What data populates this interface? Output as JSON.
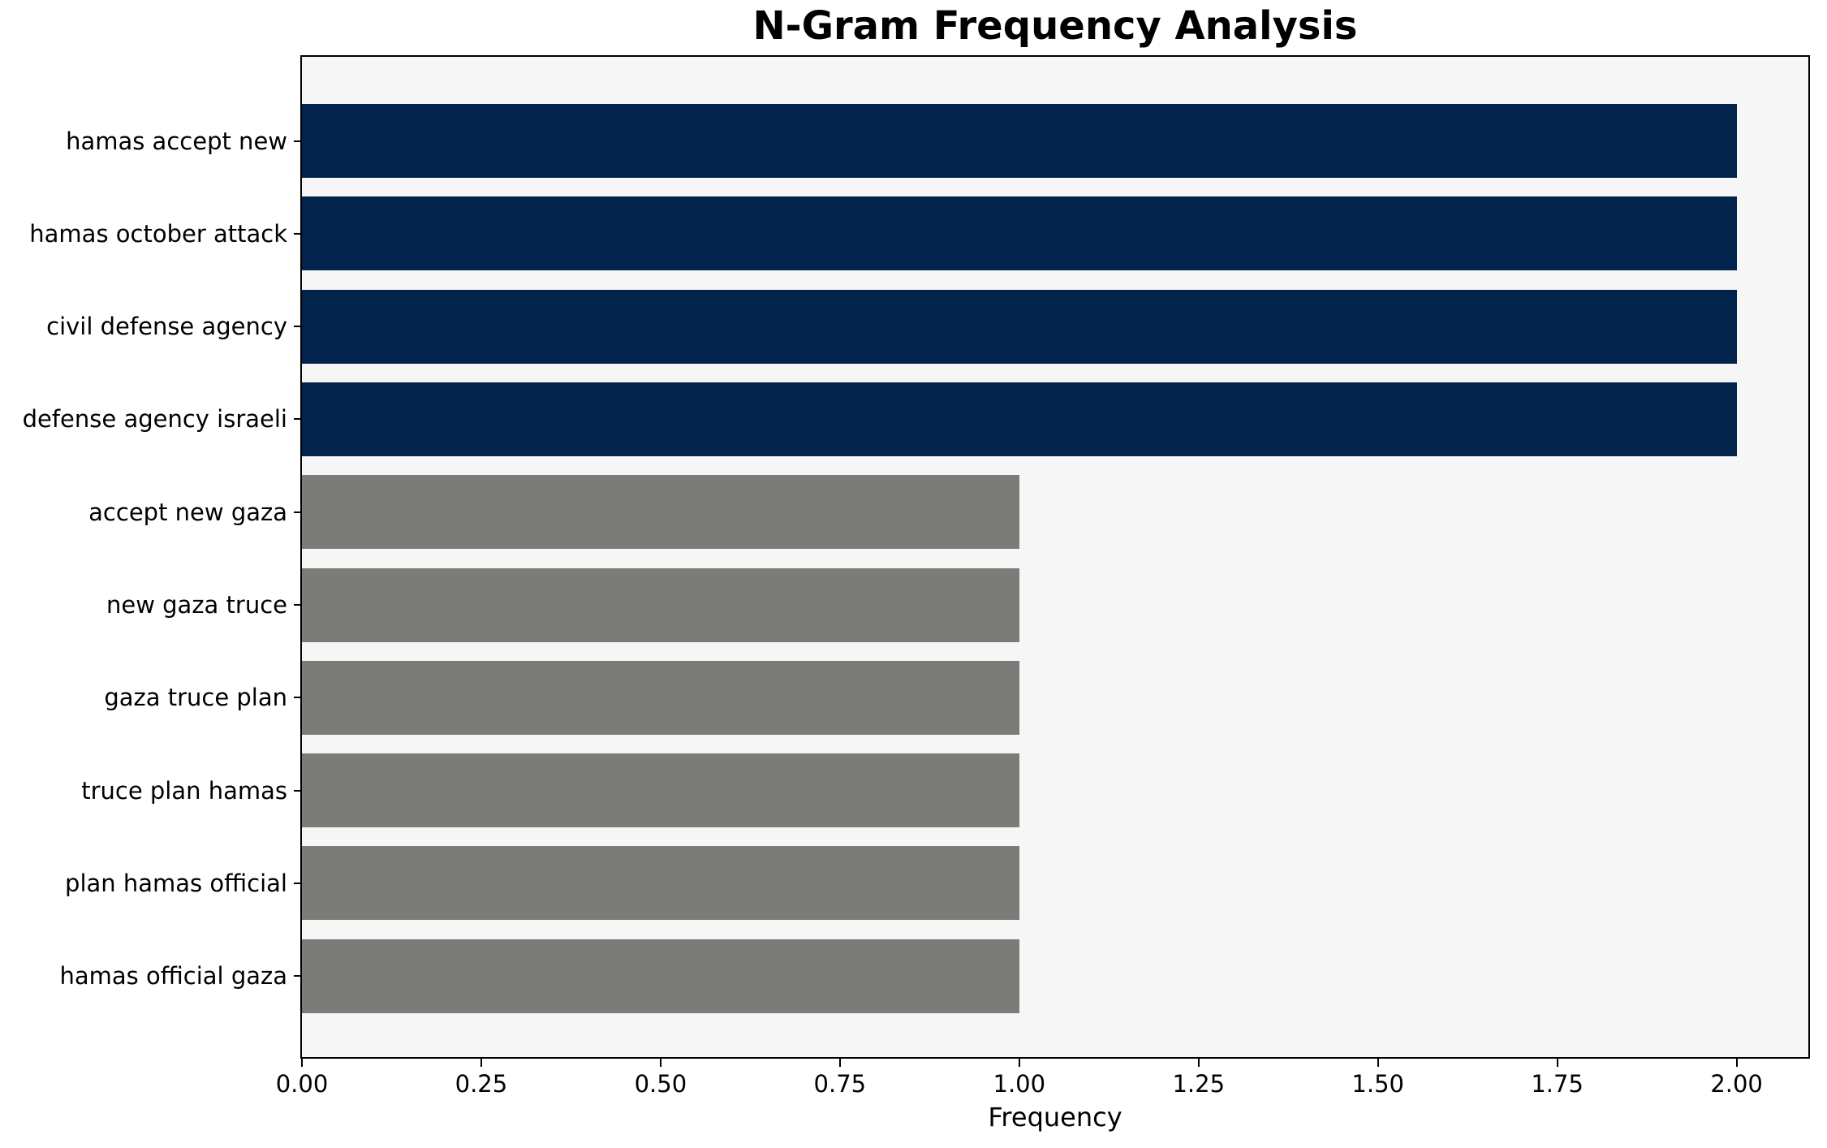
{
  "title": "N-Gram Frequency Analysis",
  "chart_data": {
    "type": "bar",
    "orientation": "horizontal",
    "title": "N-Gram Frequency Analysis",
    "xlabel": "Frequency",
    "ylabel": "",
    "categories": [
      "hamas accept new",
      "hamas october attack",
      "civil defense agency",
      "defense agency israeli",
      "accept new gaza",
      "new gaza truce",
      "gaza truce plan",
      "truce plan hamas",
      "plan hamas official",
      "hamas official gaza"
    ],
    "values": [
      2,
      2,
      2,
      2,
      1,
      1,
      1,
      1,
      1,
      1
    ],
    "bar_colors": [
      "#02234c",
      "#02234c",
      "#02234c",
      "#02234c",
      "#7b7b77",
      "#7b7b77",
      "#7b7b77",
      "#7b7b77",
      "#7b7b77",
      "#7b7b77"
    ],
    "xlim": [
      0,
      2.1
    ],
    "xticks": [
      0,
      0.25,
      0.5,
      0.75,
      1.0,
      1.25,
      1.5,
      1.75,
      2.0
    ],
    "xtick_labels": [
      "0.00",
      "0.25",
      "0.50",
      "0.75",
      "1.00",
      "1.25",
      "1.50",
      "1.75",
      "2.00"
    ],
    "grid": false,
    "legend": "none",
    "colors": {
      "highlight_bar": "#02234c",
      "default_bar": "#7b7b77",
      "plot_background": "#f6f6f7",
      "figure_background": "#ffffff",
      "spine": "#000000",
      "text": "#000000"
    }
  }
}
